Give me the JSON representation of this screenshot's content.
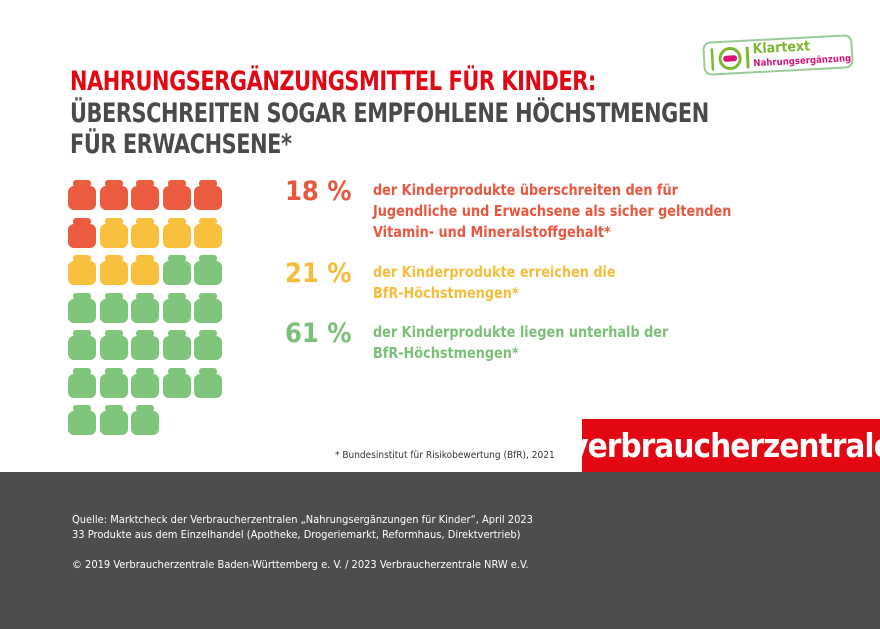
{
  "badge": {
    "title": "Klartext",
    "subtitle": "Nahrungsergänzung",
    "icon": "plate-fork-knife-pill-icon"
  },
  "header": {
    "line1": "NAHRUNGSERGÄNZUNGSMITTEL FÜR KINDER:",
    "line2": "ÜBERSCHREITEN SOGAR EMPFOHLENE HÖCHSTMENGEN",
    "line3": "FÜR ERWACHSENE*"
  },
  "chart_data": {
    "type": "pictogram",
    "unit": "product jar",
    "total": 33,
    "groups": [
      {
        "count": 6,
        "percent": 18,
        "color": "#ea5b3f"
      },
      {
        "count": 7,
        "percent": 21,
        "color": "#f8c03d"
      },
      {
        "count": 20,
        "percent": 61,
        "color": "#80c57c"
      }
    ]
  },
  "stats": [
    {
      "pct": "18 %",
      "lines": [
        "der Kinderprodukte überschreiten den für",
        "Jugendliche und Erwachsene als sicher geltenden",
        "Vitamin- und Mineralstoffgehalt*"
      ],
      "color": "#e9573f"
    },
    {
      "pct": "21 %",
      "lines": [
        "der Kinderprodukte erreichen die",
        "BfR-Höchstmengen*"
      ],
      "color": "#f6bd3b"
    },
    {
      "pct": "61 %",
      "lines": [
        "der Kinderprodukte liegen unterhalb der",
        "BfR-Höchstmengen*"
      ],
      "color": "#7cbf78"
    }
  ],
  "footnote": "* Bundesinstitut für Risikobewertung (BfR), 2021",
  "logo": "verbraucherzentrale",
  "footer": {
    "source": "Quelle: Marktcheck der Verbraucherzentralen „Nahrungsergänzungen für Kinder“, April 2023",
    "products": "33 Produkte aus dem Einzelhandel (Apotheke, Drogeriemarkt, Reformhaus, Direktvertrieb)",
    "copyright": "© 2019 Verbraucherzentrale Baden-Württemberg e. V. / 2023 Verbraucherzentrale NRW e.V."
  }
}
